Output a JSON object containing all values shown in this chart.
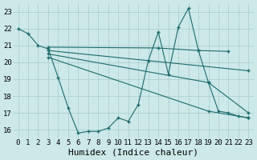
{
  "background_color": "#cce8e8",
  "line_color": "#1e6b6b",
  "grid_color": "#aacccc",
  "xlabel": "Humidex (Indice chaleur)",
  "xlabel_fontsize": 8,
  "tick_fontsize": 6.5,
  "xlim": [
    -0.5,
    23.5
  ],
  "ylim": [
    15.5,
    23.5
  ],
  "yticks": [
    16,
    17,
    18,
    19,
    20,
    21,
    22,
    23
  ],
  "xticks": [
    0,
    1,
    2,
    3,
    4,
    5,
    6,
    7,
    8,
    9,
    10,
    11,
    12,
    13,
    14,
    15,
    16,
    17,
    18,
    19,
    20,
    21,
    22,
    23
  ],
  "series": [
    {
      "x": [
        0,
        1,
        2,
        3,
        4,
        5,
        6,
        7,
        8,
        9,
        10,
        11,
        12,
        13,
        14,
        15,
        16,
        17,
        18,
        19,
        20,
        21,
        22,
        23
      ],
      "y": [
        22,
        21.7,
        21,
        20.8,
        19.1,
        17.3,
        15.8,
        15.9,
        15.9,
        16.1,
        16.7,
        16.5,
        17.5,
        20.1,
        21.8,
        19.3,
        22.1,
        23.2,
        20.7,
        18.8,
        17.1,
        17.0,
        16.8,
        16.7
      ]
    },
    {
      "x": [
        3,
        14,
        18,
        21
      ],
      "y": [
        20.9,
        20.85,
        20.7,
        20.65
      ]
    },
    {
      "x": [
        3,
        23
      ],
      "y": [
        20.7,
        19.5
      ]
    },
    {
      "x": [
        3,
        19,
        23
      ],
      "y": [
        20.5,
        18.8,
        17.0
      ]
    },
    {
      "x": [
        3,
        19,
        23
      ],
      "y": [
        20.3,
        17.1,
        16.7
      ]
    }
  ]
}
